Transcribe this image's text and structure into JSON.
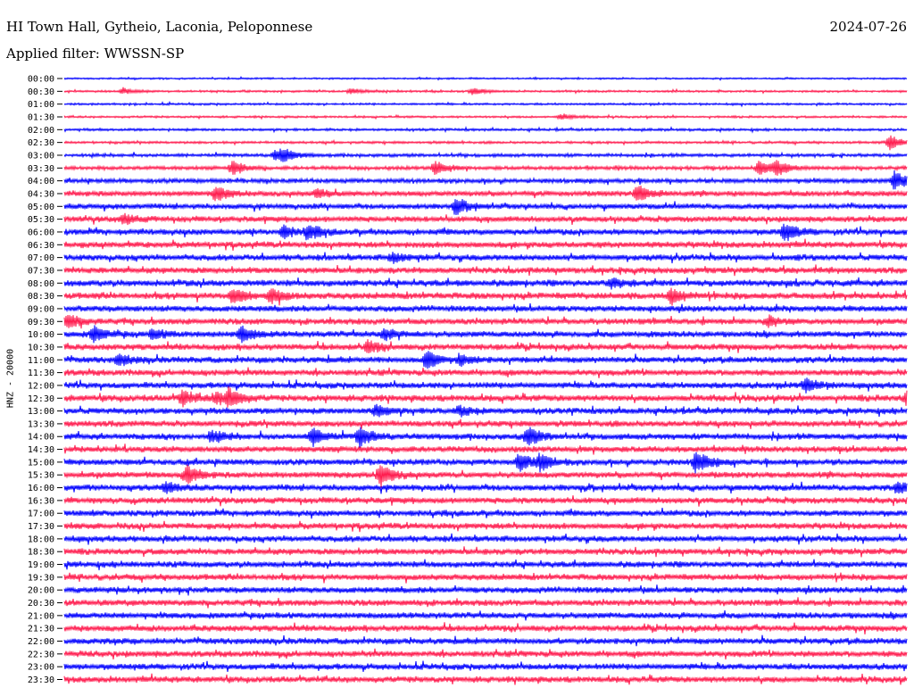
{
  "header": {
    "station": "HI Town Hall, Gytheio, Laconia, Peloponnese",
    "date": "2024-07-26",
    "filter": "Applied filter: WWSSN-SP",
    "channel": "HNZ - 20000"
  },
  "colors": {
    "odd_trace": "#0000ff",
    "even_trace": "#ff1a4d",
    "background": "#ffffff",
    "text": "#000000"
  },
  "chart_data": {
    "type": "line",
    "title": "HI Town Hall, Gytheio, Laconia, Peloponnese",
    "ylabel": "HNZ - 20000",
    "xlabel": "",
    "grid": false,
    "legend": "none",
    "row_labels": [
      "00:00",
      "00:30",
      "01:00",
      "01:30",
      "02:00",
      "02:30",
      "03:00",
      "03:30",
      "04:00",
      "04:30",
      "05:00",
      "05:30",
      "06:00",
      "06:30",
      "07:00",
      "07:30",
      "08:00",
      "08:30",
      "09:00",
      "09:30",
      "10:00",
      "10:30",
      "11:00",
      "11:30",
      "12:00",
      "12:30",
      "13:00",
      "13:30",
      "14:00",
      "14:30",
      "15:00",
      "15:30",
      "16:00",
      "16:30",
      "17:00",
      "17:30",
      "18:00",
      "18:30",
      "19:00",
      "19:30",
      "20:00",
      "20:30",
      "21:00",
      "21:30",
      "22:00",
      "22:30",
      "23:00",
      "23:30"
    ],
    "row_colors": [
      "#0000ff",
      "#ff1a4d"
    ],
    "noise_level": [
      0.8,
      1,
      1,
      1,
      1.2,
      1.2,
      1.6,
      1.8,
      2.2,
      2.6,
      2.6,
      2.8,
      3,
      3,
      3,
      3,
      3.2,
      3.2,
      3,
      3,
      3,
      3,
      3,
      3,
      3,
      3.2,
      3,
      3,
      3,
      3,
      3,
      3,
      3,
      3,
      3,
      3,
      3,
      3,
      3,
      3,
      3,
      3,
      3,
      3,
      3,
      3,
      3,
      3
    ],
    "events": [
      {
        "row": 1,
        "x": 0.07,
        "amp": 3
      },
      {
        "row": 1,
        "x": 0.34,
        "amp": 3
      },
      {
        "row": 1,
        "x": 0.485,
        "amp": 4
      },
      {
        "row": 3,
        "x": 0.59,
        "amp": 3
      },
      {
        "row": 5,
        "x": 0.98,
        "amp": 8
      },
      {
        "row": 6,
        "x": 0.25,
        "amp": 5
      },
      {
        "row": 6,
        "x": 0.26,
        "amp": 6
      },
      {
        "row": 7,
        "x": 0.2,
        "amp": 8
      },
      {
        "row": 7,
        "x": 0.44,
        "amp": 8
      },
      {
        "row": 7,
        "x": 0.825,
        "amp": 8
      },
      {
        "row": 7,
        "x": 0.845,
        "amp": 7
      },
      {
        "row": 8,
        "x": 0.985,
        "amp": 10
      },
      {
        "row": 9,
        "x": 0.18,
        "amp": 8
      },
      {
        "row": 9,
        "x": 0.3,
        "amp": 5
      },
      {
        "row": 9,
        "x": 0.68,
        "amp": 10
      },
      {
        "row": 10,
        "x": 0.465,
        "amp": 8
      },
      {
        "row": 11,
        "x": 0.07,
        "amp": 5
      },
      {
        "row": 12,
        "x": 0.26,
        "amp": 6
      },
      {
        "row": 12,
        "x": 0.29,
        "amp": 7
      },
      {
        "row": 12,
        "x": 0.855,
        "amp": 9
      },
      {
        "row": 14,
        "x": 0.39,
        "amp": 5
      },
      {
        "row": 16,
        "x": 0.65,
        "amp": 5
      },
      {
        "row": 17,
        "x": 0.2,
        "amp": 8
      },
      {
        "row": 17,
        "x": 0.245,
        "amp": 8
      },
      {
        "row": 17,
        "x": 0.72,
        "amp": 8
      },
      {
        "row": 19,
        "x": 0.005,
        "amp": 7
      },
      {
        "row": 19,
        "x": 0.835,
        "amp": 5
      },
      {
        "row": 20,
        "x": 0.035,
        "amp": 8
      },
      {
        "row": 20,
        "x": 0.105,
        "amp": 5
      },
      {
        "row": 20,
        "x": 0.21,
        "amp": 8
      },
      {
        "row": 20,
        "x": 0.38,
        "amp": 6
      },
      {
        "row": 21,
        "x": 0.36,
        "amp": 6
      },
      {
        "row": 22,
        "x": 0.065,
        "amp": 6
      },
      {
        "row": 22,
        "x": 0.43,
        "amp": 10
      },
      {
        "row": 22,
        "x": 0.47,
        "amp": 5
      },
      {
        "row": 24,
        "x": 0.88,
        "amp": 7
      },
      {
        "row": 25,
        "x": 0.14,
        "amp": 8
      },
      {
        "row": 25,
        "x": 0.18,
        "amp": 6
      },
      {
        "row": 25,
        "x": 0.195,
        "amp": 9
      },
      {
        "row": 25,
        "x": 1.0,
        "amp": 7
      },
      {
        "row": 26,
        "x": 0.37,
        "amp": 6
      },
      {
        "row": 26,
        "x": 0.47,
        "amp": 5
      },
      {
        "row": 28,
        "x": 0.175,
        "amp": 6
      },
      {
        "row": 28,
        "x": 0.295,
        "amp": 9
      },
      {
        "row": 28,
        "x": 0.35,
        "amp": 11
      },
      {
        "row": 28,
        "x": 0.55,
        "amp": 10
      },
      {
        "row": 30,
        "x": 0.54,
        "amp": 9
      },
      {
        "row": 30,
        "x": 0.565,
        "amp": 8
      },
      {
        "row": 30,
        "x": 0.75,
        "amp": 11
      },
      {
        "row": 31,
        "x": 0.145,
        "amp": 9
      },
      {
        "row": 31,
        "x": 0.375,
        "amp": 12
      },
      {
        "row": 32,
        "x": 0.12,
        "amp": 5
      },
      {
        "row": 32,
        "x": 0.99,
        "amp": 5
      }
    ]
  }
}
